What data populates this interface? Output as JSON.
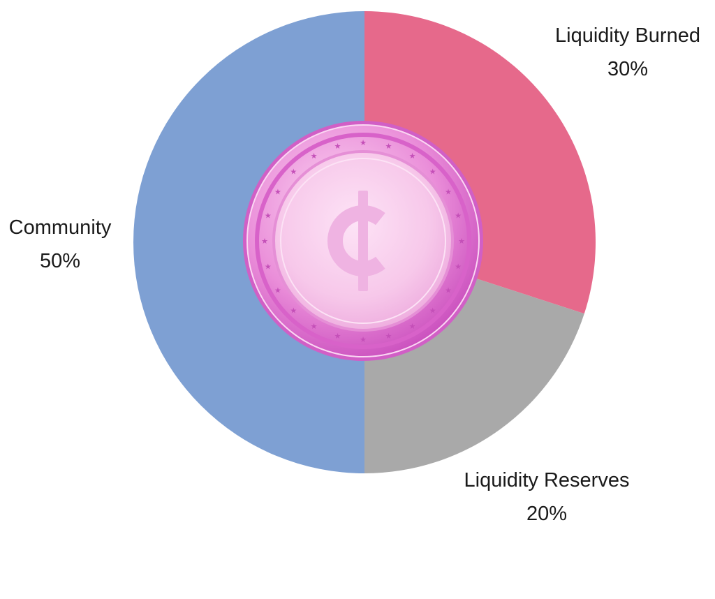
{
  "chart_data": {
    "type": "pie",
    "title": "",
    "slices": [
      {
        "label": "Liquidity Burned",
        "value": 30,
        "display": "30%",
        "color": "#e6698b"
      },
      {
        "label": "Liquidity Reserves",
        "value": 20,
        "display": "20%",
        "color": "#a9a9a9"
      },
      {
        "label": "Community",
        "value": 50,
        "display": "50%",
        "color": "#7ea0d3"
      }
    ],
    "start": "top",
    "direction": "clockwise",
    "center_icon": "cent-coin-icon",
    "coin_colors": {
      "face": "#f7c8ea",
      "rim": "#e98fd8",
      "edge": "#d15fc6",
      "symbol": "#efb3e2"
    }
  }
}
